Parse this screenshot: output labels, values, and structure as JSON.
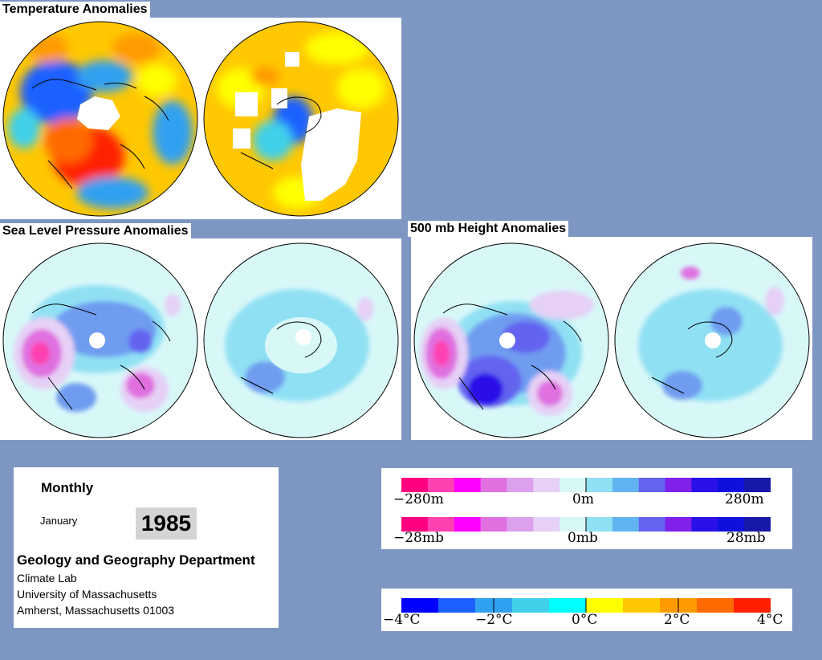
{
  "titles": {
    "temperature": "Temperature Anomalies",
    "slp": "Sea Level Pressure Anomalies",
    "height": "500 mb Height Anomalies"
  },
  "info": {
    "frequency": "Monthly",
    "month": "January",
    "year": "1985",
    "department": "Geology and Geography Department",
    "lab": "Climate Lab",
    "university": "University of Massachusetts",
    "address": "Amherst, Massachusetts 01003"
  },
  "height_scale": {
    "left": "−280m",
    "center": "0m",
    "right": "280m"
  },
  "pressure_scale": {
    "left": "−28mb",
    "center": "0mb",
    "right": "28mb"
  },
  "temp_scale": {
    "m4": "−4°C",
    "m2": "−2°C",
    "z": "0°C",
    "p2": "2°C",
    "p4": "4°C"
  },
  "colors": {
    "anomaly_scale": [
      "#ff0080",
      "#ff40b0",
      "#ff00ff",
      "#e070e0",
      "#dca0ec",
      "#e6d0f6",
      "#d8f8f8",
      "#90e0f4",
      "#60b4f0",
      "#6464f0",
      "#8020e8",
      "#2a10e8",
      "#1010dc",
      "#1818a8"
    ],
    "temp_scale": [
      "#0000ff",
      "#1e60ff",
      "#30a0f0",
      "#40d0ea",
      "#00ffff",
      "#ffff00",
      "#ffc800",
      "#ff9a00",
      "#ff6a00",
      "#ff2000"
    ]
  }
}
